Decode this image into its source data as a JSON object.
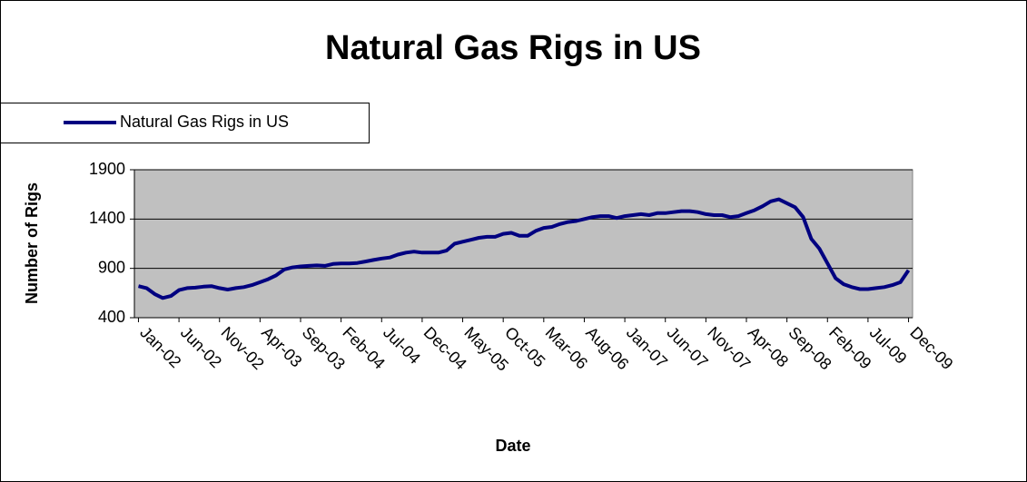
{
  "chart_data": {
    "type": "line",
    "title": "Natural Gas Rigs in US",
    "x_label": "Date",
    "y_label": "Number of Rigs",
    "categories": [
      "Jan-02",
      null,
      null,
      null,
      null,
      "Jun-02",
      null,
      null,
      null,
      null,
      "Nov-02",
      null,
      null,
      null,
      null,
      "Apr-03",
      null,
      null,
      null,
      null,
      "Sep-03",
      null,
      null,
      null,
      null,
      "Feb-04",
      null,
      null,
      null,
      null,
      "Jul-04",
      null,
      null,
      null,
      null,
      "Dec-04",
      null,
      null,
      null,
      null,
      "May-05",
      null,
      null,
      null,
      null,
      "Oct-05",
      null,
      null,
      null,
      null,
      "Mar-06",
      null,
      null,
      null,
      null,
      "Aug-06",
      null,
      null,
      null,
      null,
      "Jan-07",
      null,
      null,
      null,
      null,
      "Jun-07",
      null,
      null,
      null,
      null,
      "Nov-07",
      null,
      null,
      null,
      null,
      "Apr-08",
      null,
      null,
      null,
      null,
      "Sep-08",
      null,
      null,
      null,
      null,
      "Feb-09",
      null,
      null,
      null,
      null,
      "Jul-09",
      null,
      null,
      null,
      null,
      "Dec-09"
    ],
    "series": [
      {
        "name": "Natural Gas Rigs in US",
        "color": "#000080",
        "values": [
          720,
          700,
          640,
          600,
          620,
          680,
          700,
          705,
          715,
          720,
          700,
          685,
          700,
          710,
          730,
          760,
          790,
          830,
          890,
          910,
          920,
          925,
          930,
          925,
          945,
          950,
          950,
          955,
          970,
          985,
          1000,
          1010,
          1040,
          1060,
          1070,
          1060,
          1060,
          1060,
          1080,
          1150,
          1170,
          1190,
          1210,
          1220,
          1220,
          1250,
          1260,
          1230,
          1230,
          1280,
          1310,
          1320,
          1350,
          1370,
          1380,
          1400,
          1420,
          1430,
          1430,
          1410,
          1430,
          1440,
          1450,
          1440,
          1460,
          1460,
          1470,
          1480,
          1480,
          1470,
          1450,
          1440,
          1440,
          1420,
          1430,
          1460,
          1490,
          1530,
          1580,
          1600,
          1560,
          1520,
          1420,
          1200,
          1100,
          950,
          800,
          740,
          710,
          690,
          690,
          700,
          710,
          730,
          760,
          880
        ]
      }
    ],
    "ylim": [
      400,
      1900
    ],
    "yticks": [
      400,
      900,
      1400,
      1900
    ],
    "grid": true,
    "legend": "top-left"
  }
}
